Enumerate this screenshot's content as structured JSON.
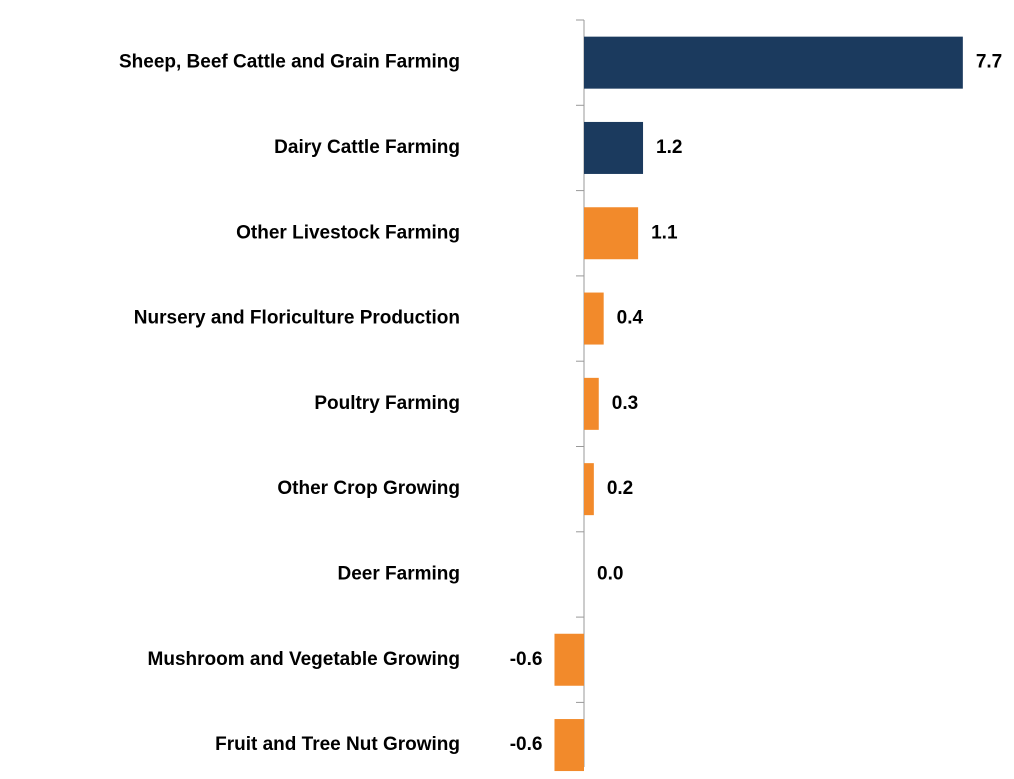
{
  "chart_data": {
    "type": "hbar",
    "categories": [
      "Sheep, Beef Cattle and Grain Farming",
      "Dairy Cattle Farming",
      "Other Livestock Farming",
      "Nursery and Floriculture Production",
      "Poultry Farming",
      "Other Crop Growing",
      "Deer Farming",
      "Mushroom and Vegetable Growing",
      "Fruit and Tree Nut Growing"
    ],
    "values": [
      7.7,
      1.2,
      1.1,
      0.4,
      0.3,
      0.2,
      0.0,
      -0.6,
      -0.6
    ],
    "value_labels": [
      "7.7",
      "1.2",
      "1.1",
      "0.4",
      "0.3",
      "0.2",
      "0.0",
      "-0.6",
      "-0.6"
    ],
    "colors": [
      "#1b3a5e",
      "#1b3a5e",
      "#f28a2b",
      "#f28a2b",
      "#f28a2b",
      "#f28a2b",
      "#f28a2b",
      "#f28a2b",
      "#f28a2b"
    ]
  }
}
